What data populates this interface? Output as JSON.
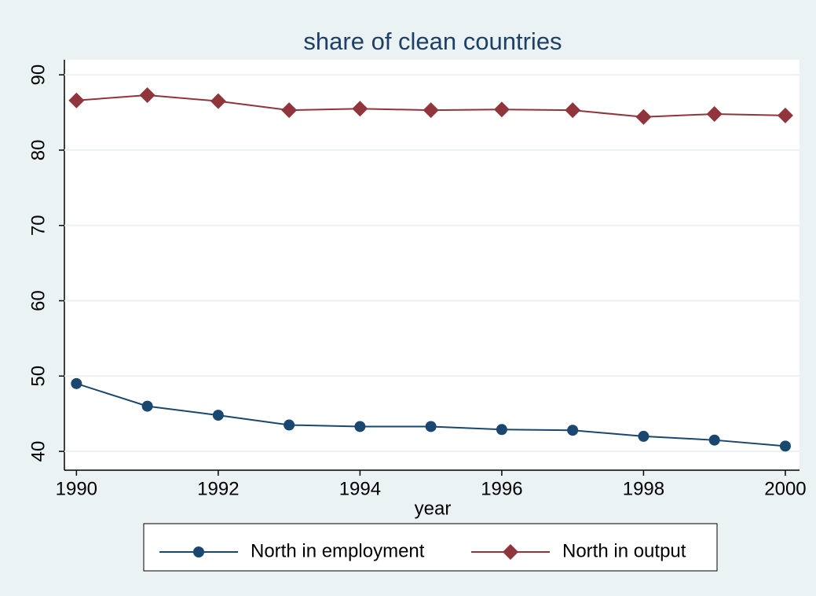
{
  "chart_data": {
    "type": "line",
    "title": "share of clean countries",
    "xlabel": "year",
    "x": [
      1990,
      1991,
      1992,
      1993,
      1994,
      1995,
      1996,
      1997,
      1998,
      1999,
      2000
    ],
    "series": [
      {
        "name": "North in employment",
        "color": "#1a476f",
        "marker": "circle",
        "values": [
          49.0,
          46.0,
          44.8,
          43.5,
          43.3,
          43.3,
          42.9,
          42.8,
          42.0,
          41.5,
          40.7
        ]
      },
      {
        "name": "North in output",
        "color": "#90353b",
        "marker": "diamond",
        "values": [
          86.6,
          87.3,
          86.5,
          85.3,
          85.5,
          85.3,
          85.4,
          85.3,
          84.4,
          84.8,
          84.6
        ]
      }
    ],
    "xlim": [
      1989.83,
      2000.2
    ],
    "xticks": [
      1990,
      1992,
      1994,
      1996,
      1998,
      2000
    ],
    "ylim": [
      37.5,
      92
    ],
    "yticks": [
      40,
      50,
      60,
      70,
      80,
      90
    ],
    "grid": true,
    "legend_position": "bottom"
  }
}
